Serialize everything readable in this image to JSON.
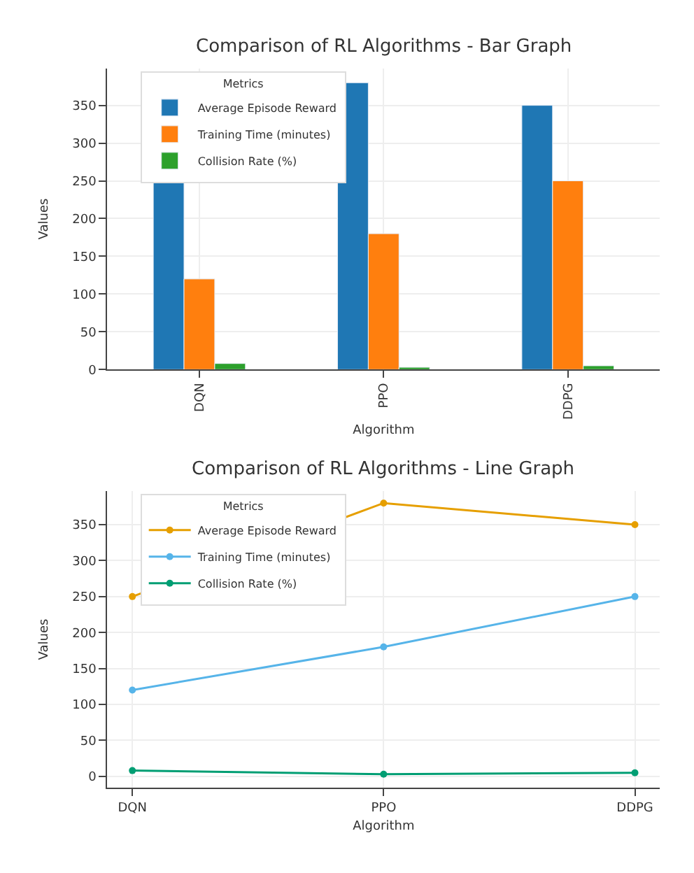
{
  "chart_data": [
    {
      "type": "bar",
      "title": "Comparison of RL Algorithms - Bar Graph",
      "xlabel": "Algorithm",
      "ylabel": "Values",
      "legend_title": "Metrics",
      "categories": [
        "DQN",
        "PPO",
        "DDPG"
      ],
      "series": [
        {
          "name": "Average Episode Reward",
          "color": "#1f77b4",
          "values": [
            250,
            380,
            350
          ]
        },
        {
          "name": "Training Time (minutes)",
          "color": "#ff7f0e",
          "values": [
            120,
            180,
            250
          ]
        },
        {
          "name": "Collision Rate (%)",
          "color": "#2ca02c",
          "values": [
            8,
            3,
            5
          ]
        }
      ],
      "ylim": [
        0,
        399
      ],
      "yticks": [
        0,
        50,
        100,
        150,
        200,
        250,
        300,
        350
      ],
      "grid": true,
      "legend": "top left"
    },
    {
      "type": "line",
      "title": "Comparison of RL Algorithms - Line Graph",
      "xlabel": "Algorithm",
      "ylabel": "Values",
      "legend_title": "Metrics",
      "categories": [
        "DQN",
        "PPO",
        "DDPG"
      ],
      "series": [
        {
          "name": "Average Episode Reward",
          "color": "#e69f00",
          "values": [
            250,
            380,
            350
          ]
        },
        {
          "name": "Training Time (minutes)",
          "color": "#56b4e9",
          "values": [
            120,
            180,
            250
          ]
        },
        {
          "name": "Collision Rate (%)",
          "color": "#009e73",
          "values": [
            8,
            3,
            5
          ]
        }
      ],
      "ylim": [
        -16,
        397
      ],
      "yticks": [
        0,
        50,
        100,
        150,
        200,
        250,
        300,
        350
      ],
      "grid": true,
      "legend": "top left",
      "marker": "circle",
      "line_style": "solid"
    }
  ]
}
